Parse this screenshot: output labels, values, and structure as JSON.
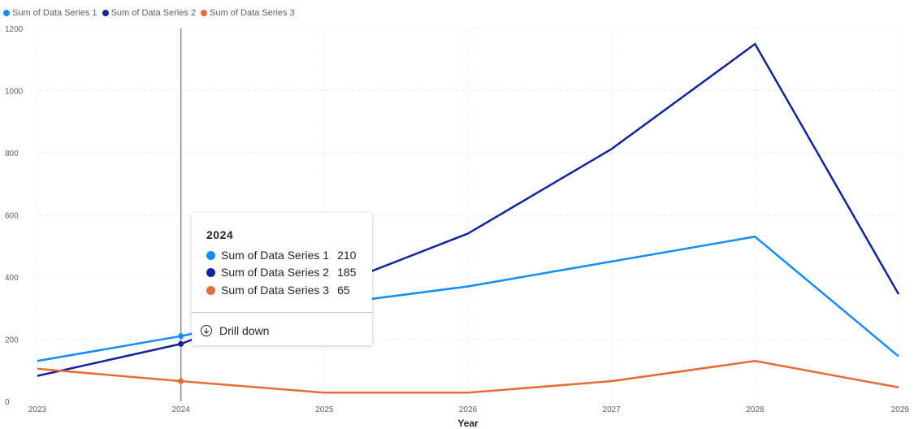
{
  "colors": {
    "series1": "#118dff",
    "series2": "#12239e",
    "series3": "#e66c37",
    "grid": "#e1dfdd",
    "axis_text": "#605e5c",
    "hover_line": "#8a8886"
  },
  "chart_data": {
    "type": "line",
    "x": [
      2023,
      2024,
      2025,
      2026,
      2027,
      2028,
      2029
    ],
    "xlabel": "Year",
    "ylabel": "",
    "ylim": [
      0,
      1200
    ],
    "yticks": [
      0,
      200,
      400,
      600,
      800,
      1000,
      1200
    ],
    "grid": true,
    "legend_position": "top-left",
    "series": [
      {
        "name": "Sum of  Data Series 1",
        "values": [
          130,
          210,
          310,
          370,
          450,
          530,
          145
        ]
      },
      {
        "name": "Sum of  Data Series 2",
        "values": [
          82,
          185,
          360,
          540,
          812,
          1150,
          345
        ]
      },
      {
        "name": "Sum of  Data Series 3",
        "values": [
          105,
          65,
          28,
          28,
          65,
          130,
          45
        ]
      }
    ],
    "highlighted_x": 2024
  },
  "tooltip": {
    "title": "2024",
    "rows": [
      {
        "label": "Sum of Data Series 1",
        "value": "210"
      },
      {
        "label": "Sum of Data Series 2",
        "value": "185"
      },
      {
        "label": "Sum of Data Series 3",
        "value": "65"
      }
    ],
    "action_label": "Drill down",
    "action_icon": "drill-down-icon"
  }
}
